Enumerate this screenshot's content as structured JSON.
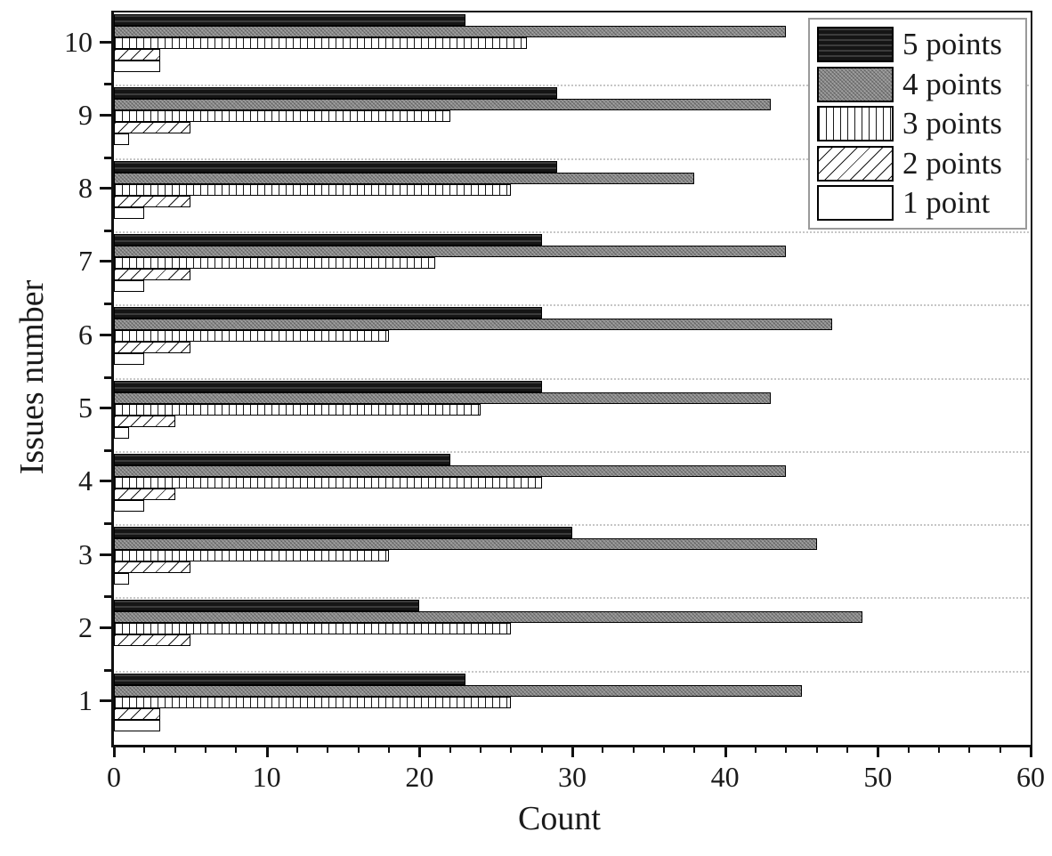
{
  "chart_data": {
    "type": "bar",
    "orientation": "horizontal",
    "title": "",
    "xlabel": "Count",
    "ylabel": "Issues number",
    "xlim": [
      0,
      60
    ],
    "x_major_ticks": [
      0,
      10,
      20,
      30,
      40,
      50,
      60
    ],
    "x_minor_tick_step": 2,
    "grid": "faint dotted horizontal lines between issue groups",
    "legend_position": "top-right",
    "categories": [
      "1",
      "2",
      "3",
      "4",
      "5",
      "6",
      "7",
      "8",
      "9",
      "10"
    ],
    "series": [
      {
        "name": "5 points",
        "pattern": "dark-horizontal-stripes",
        "values": [
          23,
          20,
          30,
          22,
          28,
          28,
          28,
          29,
          29,
          23
        ]
      },
      {
        "name": "4 points",
        "pattern": "gray-dotted",
        "values": [
          45,
          49,
          46,
          44,
          43,
          47,
          44,
          38,
          43,
          44
        ]
      },
      {
        "name": "3 points",
        "pattern": "vertical-stripes",
        "values": [
          26,
          26,
          18,
          28,
          24,
          18,
          21,
          26,
          22,
          27
        ]
      },
      {
        "name": "2 points",
        "pattern": "diagonal-stripes",
        "values": [
          3,
          5,
          5,
          4,
          4,
          5,
          5,
          5,
          5,
          3
        ]
      },
      {
        "name": "1 point",
        "pattern": "plain-white",
        "values": [
          3,
          0,
          1,
          2,
          1,
          2,
          2,
          2,
          1,
          3
        ]
      }
    ],
    "colors": {
      "dark_series_fill": "#1f1f1f",
      "gray_series_fill": "#8d8d8d",
      "pattern_line": "#1a1a1a",
      "frame": "#111111",
      "gridline": "#c6c6c6",
      "text": "#1a1a1a",
      "background": "#ffffff"
    }
  }
}
